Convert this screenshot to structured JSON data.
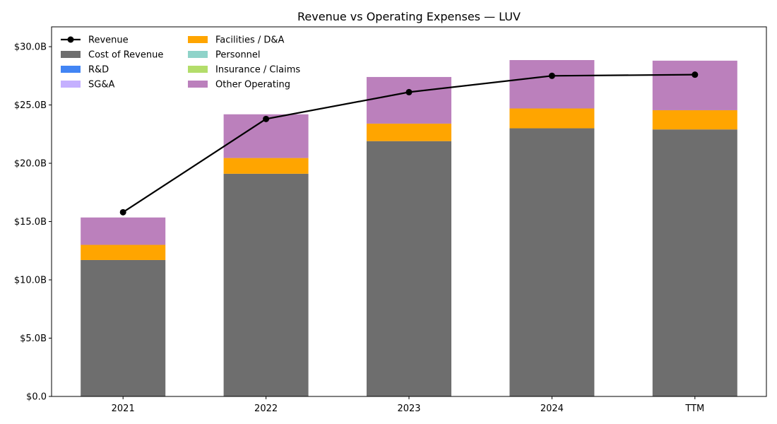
{
  "chart_data": {
    "type": "bar",
    "stacked": true,
    "title": "Revenue vs Operating Expenses — LUV",
    "xlabel": "",
    "ylabel": "",
    "categories": [
      "2021",
      "2022",
      "2023",
      "2024",
      "TTM"
    ],
    "ylim": [
      0,
      31.7
    ],
    "yticks": [
      0,
      5,
      10,
      15,
      20,
      25,
      30
    ],
    "ytick_labels": [
      "$0.0",
      "$5.0B",
      "$10.0B",
      "$15.0B",
      "$20.0B",
      "$25.0B",
      "$30.0B"
    ],
    "unit": "billions USD",
    "grid": false,
    "legend_position": "top-left",
    "series": [
      {
        "name": "Cost of Revenue",
        "kind": "bar",
        "color": "#6e6e6e",
        "values": [
          11.7,
          19.1,
          21.9,
          23.0,
          22.9
        ]
      },
      {
        "name": "R&D",
        "kind": "bar",
        "color": "#4285f4",
        "values": [
          0,
          0,
          0,
          0,
          0
        ]
      },
      {
        "name": "SG&A",
        "kind": "bar",
        "color": "#c5b0ff",
        "values": [
          0,
          0,
          0,
          0,
          0
        ]
      },
      {
        "name": "Facilities / D&A",
        "kind": "bar",
        "color": "#ffa500",
        "values": [
          1.3,
          1.35,
          1.5,
          1.7,
          1.65
        ]
      },
      {
        "name": "Personnel",
        "kind": "bar",
        "color": "#8fd3c9",
        "values": [
          0,
          0,
          0,
          0,
          0
        ]
      },
      {
        "name": "Insurance / Claims",
        "kind": "bar",
        "color": "#b3dd6a",
        "values": [
          0,
          0,
          0,
          0,
          0
        ]
      },
      {
        "name": "Other Operating",
        "kind": "bar",
        "color": "#bb80bc",
        "values": [
          2.35,
          3.75,
          4.0,
          4.15,
          4.25
        ]
      },
      {
        "name": "Revenue",
        "kind": "line",
        "color": "#000000",
        "values": [
          15.8,
          23.8,
          26.1,
          27.5,
          27.6
        ]
      }
    ],
    "legend_order": [
      "Revenue",
      "Cost of Revenue",
      "R&D",
      "SG&A",
      "Facilities / D&A",
      "Personnel",
      "Insurance / Claims",
      "Other Operating"
    ]
  }
}
